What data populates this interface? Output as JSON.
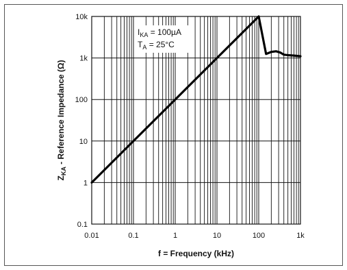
{
  "chart_data": {
    "type": "line",
    "x_scale": "log",
    "y_scale": "log",
    "xlim": [
      0.01,
      1000
    ],
    "ylim": [
      0.1,
      10000
    ],
    "xlabel": "f = Frequency (kHz)",
    "ylabel_parts": {
      "main": "Z",
      "sub": "KA",
      "rest": " - Reference Impedance (Ω)"
    },
    "x_ticks": [
      {
        "value": 0.01,
        "label": "0.01"
      },
      {
        "value": 0.1,
        "label": "0.1"
      },
      {
        "value": 1,
        "label": "1"
      },
      {
        "value": 10,
        "label": "10"
      },
      {
        "value": 100,
        "label": "100"
      },
      {
        "value": 1000,
        "label": "1k"
      }
    ],
    "y_ticks": [
      {
        "value": 0.1,
        "label": "0.1"
      },
      {
        "value": 1,
        "label": "1"
      },
      {
        "value": 10,
        "label": "10"
      },
      {
        "value": 100,
        "label": "100"
      },
      {
        "value": 1000,
        "label": "1k"
      },
      {
        "value": 10000,
        "label": "10k"
      }
    ],
    "grid": true,
    "annotations": [
      {
        "main": "I",
        "sub": "KA",
        "rest": " = 100µA"
      },
      {
        "main": "T",
        "sub": "A",
        "rest": " = 25°C"
      }
    ],
    "series": [
      {
        "x": [
          0.01,
          0.1,
          1,
          10,
          100,
          150,
          200,
          260,
          330,
          400,
          500,
          700,
          1000
        ],
        "y": [
          1,
          10,
          100,
          1000,
          10000,
          1250,
          1400,
          1450,
          1350,
          1200,
          1170,
          1140,
          1100
        ]
      }
    ]
  }
}
